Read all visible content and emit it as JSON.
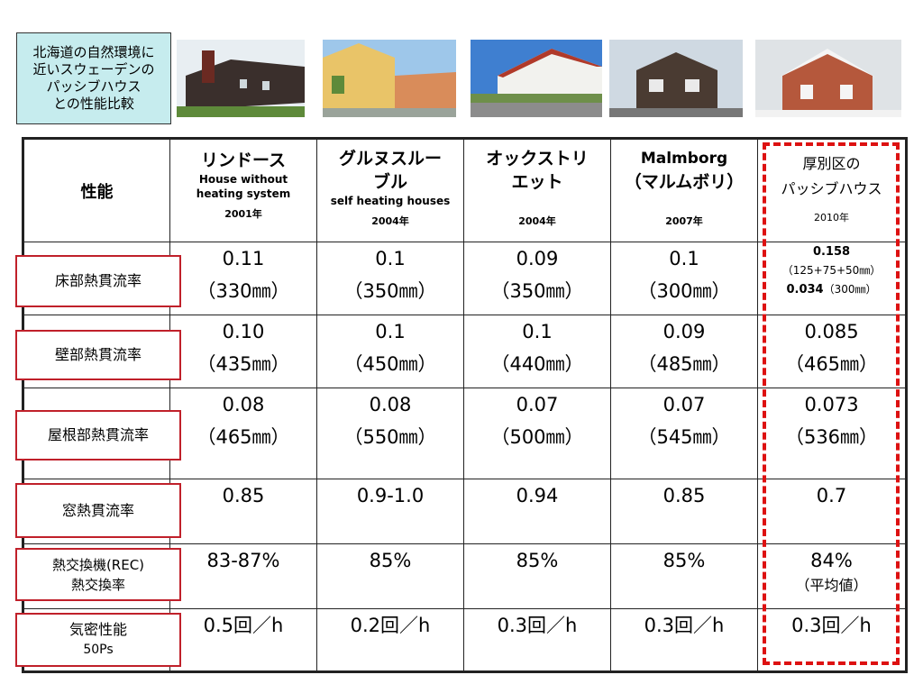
{
  "title_lines": [
    "北海道の自然環境に",
    "近いスウェーデンの",
    "パッシブハウス",
    "との性能比較"
  ],
  "header": {
    "perf_label": "性能",
    "col1": {
      "jp": "リンドース",
      "en1": "House without",
      "en2": "heating system",
      "year": "2001年"
    },
    "col2": {
      "jp1": "グルヌスルー",
      "jp2": "ブル",
      "en": "self heating houses",
      "year": "2004年"
    },
    "col3": {
      "jp1": "オックストリ",
      "jp2": "エット",
      "year": "2004年"
    },
    "col4": {
      "jp1": "Malmborg",
      "jp2": "（マルムボリ）",
      "year": "2007年"
    },
    "col5": {
      "jp1": "厚別区の",
      "jp2": "パッシブハウス",
      "year": "2010年"
    }
  },
  "rows": {
    "floor": {
      "label": "床部熱貫流率",
      "c1a": "0.11",
      "c1b": "（330㎜）",
      "c2a": "0.1",
      "c2b": "（350㎜）",
      "c3a": "0.09",
      "c3b": "（350㎜）",
      "c4a": "0.1",
      "c4b": "（300㎜）",
      "c5a": "0.158",
      "c5b": "（125+75+50㎜）",
      "c5c": "0.034",
      "c5d": "（300㎜）"
    },
    "wall": {
      "label": "壁部熱貫流率",
      "c1a": "0.10",
      "c1b": "（435㎜）",
      "c2a": "0.1",
      "c2b": "（450㎜）",
      "c3a": "0.1",
      "c3b": "（440㎜）",
      "c4a": "0.09",
      "c4b": "（485㎜）",
      "c5a": "0.085",
      "c5b": "（465㎜）"
    },
    "roof": {
      "label": "屋根部熱貫流率",
      "c1a": "0.08",
      "c1b": "（465㎜）",
      "c2a": "0.08",
      "c2b": "（550㎜）",
      "c3a": "0.07",
      "c3b": "（500㎜）",
      "c4a": "0.07",
      "c4b": "（545㎜）",
      "c5a": "0.073",
      "c5b": "（536㎜）"
    },
    "window": {
      "label": "窓熱貫流率",
      "c1": "0.85",
      "c2": "0.9-1.0",
      "c3": "0.94",
      "c4": "0.85",
      "c5": "0.7"
    },
    "hrv": {
      "label1": "熱交換機(REC)",
      "label2": "熱交換率",
      "c1": "83-87%",
      "c2": "85%",
      "c3": "85%",
      "c4": "85%",
      "c5": "84%",
      "c5b": "（平均値）"
    },
    "airtight": {
      "label1": "気密性能",
      "label2": "50Ps",
      "c1": "0.5回／h",
      "c2": "0.2回／h",
      "c3": "0.3回／h",
      "c4": "0.3回／h",
      "c5": "0.3回／h"
    }
  },
  "colors": {
    "title_bg": "#c6ecee",
    "label_border": "#c0202a",
    "highlight_dash": "#dd1111"
  }
}
